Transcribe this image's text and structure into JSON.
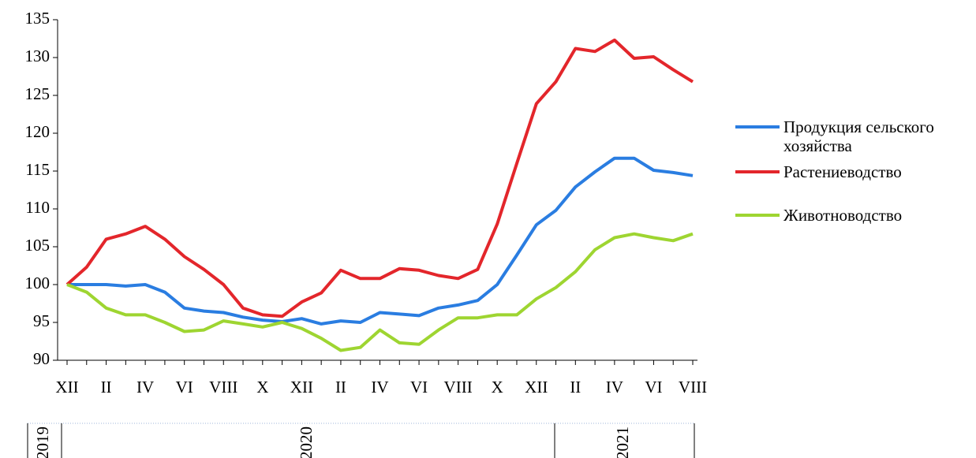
{
  "chart_data": {
    "type": "line",
    "categories": [
      "XII",
      null,
      "II",
      null,
      "IV",
      null,
      "VI",
      null,
      "VIII",
      null,
      "X",
      null,
      "XII",
      null,
      "II",
      null,
      "IV",
      null,
      "VI",
      null,
      "VIII",
      null,
      "X",
      null,
      "XII",
      null,
      "II",
      null,
      "IV",
      null,
      "VI",
      null,
      "VIII"
    ],
    "series": [
      {
        "name": "Продукция сельского хозяйства",
        "color": "#2a7de1",
        "values": [
          100,
          100,
          100,
          99.8,
          100,
          99,
          96.9,
          96.5,
          96.3,
          95.7,
          95.3,
          95.1,
          95.5,
          94.8,
          95.2,
          95,
          96.3,
          96.1,
          95.9,
          96.9,
          97.3,
          97.9,
          100,
          103.9,
          107.9,
          109.8,
          112.9,
          114.9,
          116.7,
          116.7,
          115.1,
          114.8,
          114.4
        ]
      },
      {
        "name": "Растениеводство",
        "color": "#e3262b",
        "values": [
          100,
          102.3,
          106,
          106.7,
          107.7,
          106,
          103.7,
          102,
          100,
          96.9,
          96,
          95.8,
          97.7,
          98.9,
          101.9,
          100.8,
          100.8,
          102.1,
          101.9,
          101.2,
          100.8,
          102,
          108,
          116,
          123.9,
          126.8,
          131.2,
          130.8,
          132.3,
          129.9,
          130.1,
          128.4,
          126.8
        ]
      },
      {
        "name": "Животноводство",
        "color": "#9ed531",
        "values": [
          100,
          99,
          96.9,
          96,
          96,
          95,
          93.8,
          94,
          95.2,
          94.8,
          94.4,
          95,
          94.2,
          92.9,
          91.3,
          91.7,
          94,
          92.3,
          92.1,
          94,
          95.6,
          95.6,
          96,
          96,
          98.1,
          99.6,
          101.7,
          104.6,
          106.2,
          106.7,
          106.2,
          105.8,
          106.7
        ]
      }
    ],
    "ylim": [
      90,
      135
    ],
    "yticks": [
      90,
      95,
      100,
      105,
      110,
      115,
      120,
      125,
      130,
      135
    ],
    "year_labels": [
      "2019",
      "2020",
      "2021"
    ],
    "legend": "right"
  }
}
